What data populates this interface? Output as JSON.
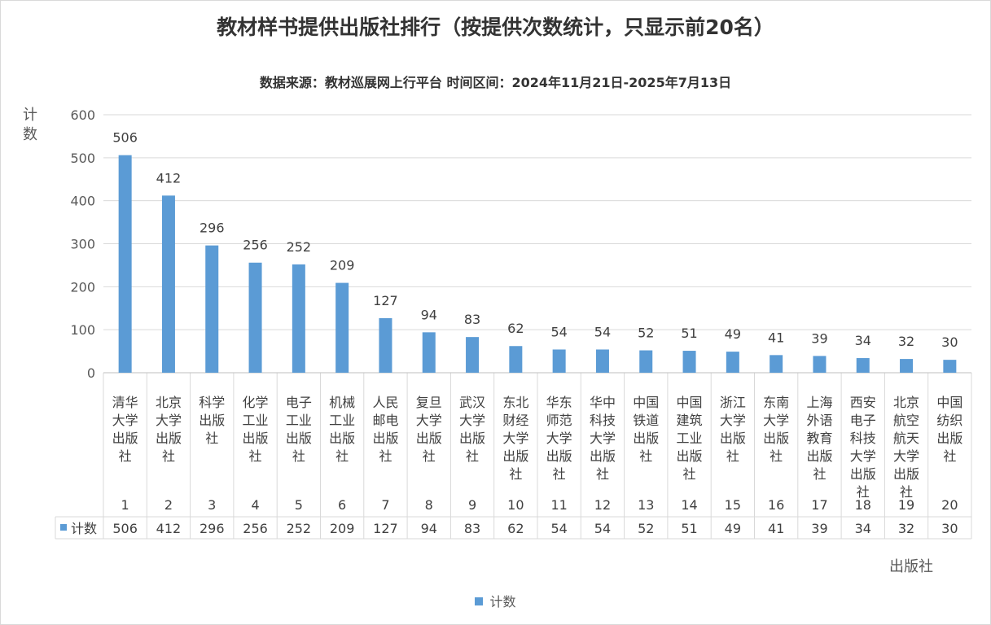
{
  "chart_data": {
    "type": "bar",
    "title": "教材样书提供出版社排行（按提供次数统计，只显示前20名）",
    "subtitle": "数据来源：教材巡展网上行平台  时间区间：2024年11月21日-2025年7月13日",
    "ylabel": "计数",
    "xlabel": "出版社",
    "ylim": [
      0,
      600
    ],
    "yticks": [
      "0",
      "100",
      "200",
      "300",
      "400",
      "500",
      "600"
    ],
    "grid": true,
    "legend_position": "bottom",
    "categories": [
      "清华大学出版社",
      "北京大学出版社",
      "科学出版社",
      "化学工业出版社",
      "电子工业出版社",
      "机械工业出版社",
      "人民邮电出版社",
      "复旦大学出版社",
      "武汉大学出版社",
      "东北财经大学出版社",
      "华东师范大学出版社",
      "华中科技大学出版社",
      "中国铁道出版社",
      "中国建筑工业出版社",
      "浙江大学出版社",
      "东南大学出版社",
      "上海外语教育出版社",
      "西安电子科技大学出版社",
      "北京航空航天大学出版社",
      "中国纺织出版社"
    ],
    "ranks": [
      "1",
      "2",
      "3",
      "4",
      "5",
      "6",
      "7",
      "8",
      "9",
      "10",
      "11",
      "12",
      "13",
      "14",
      "15",
      "16",
      "17",
      "18",
      "19",
      "20"
    ],
    "series": [
      {
        "name": "计数",
        "color": "#5b9bd5",
        "values": [
          506,
          412,
          296,
          256,
          252,
          209,
          127,
          94,
          83,
          62,
          54,
          54,
          52,
          51,
          49,
          41,
          39,
          34,
          32,
          30
        ]
      }
    ]
  }
}
